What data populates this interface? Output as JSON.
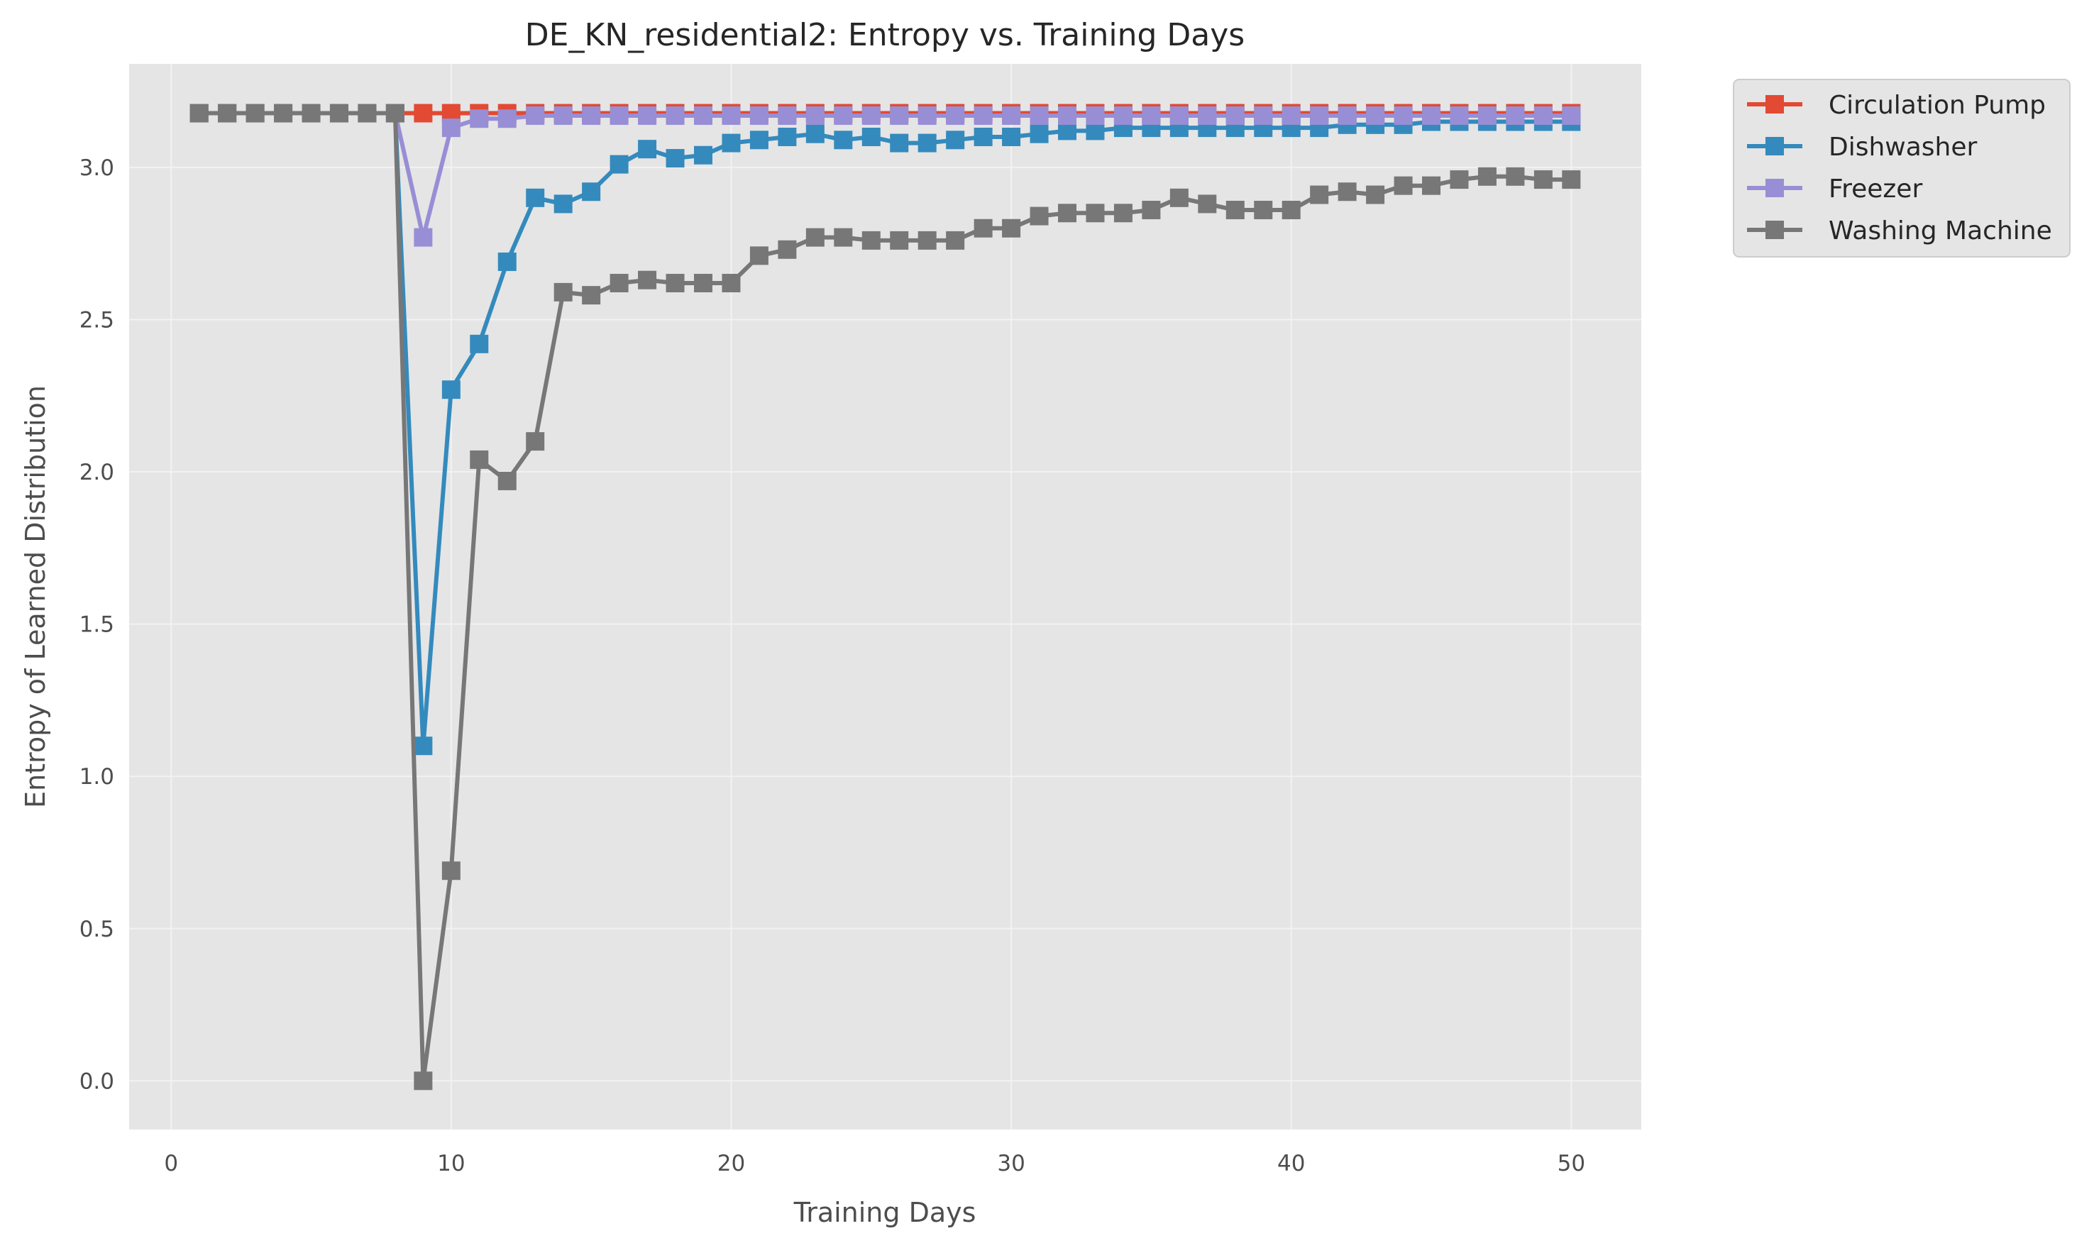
{
  "chart_data": {
    "type": "line",
    "title": "DE_KN_residential2: Entropy vs. Training Days",
    "xlabel": "Training Days",
    "ylabel": "Entropy of Learned Distribution",
    "xlim": [
      -1.5,
      52.5
    ],
    "ylim": [
      -0.16,
      3.34
    ],
    "xticks": [
      0,
      10,
      20,
      30,
      40,
      50
    ],
    "xtick_labels": [
      "0",
      "10",
      "20",
      "30",
      "40",
      "50"
    ],
    "yticks": [
      0.0,
      0.5,
      1.0,
      1.5,
      2.0,
      2.5,
      3.0
    ],
    "ytick_labels": [
      "0.0",
      "0.5",
      "1.0",
      "1.5",
      "2.0",
      "2.5",
      "3.0"
    ],
    "grid": true,
    "legend_position": "outside-top-right",
    "marker": "square",
    "x": [
      1,
      2,
      3,
      4,
      5,
      6,
      7,
      8,
      9,
      10,
      11,
      12,
      13,
      14,
      15,
      16,
      17,
      18,
      19,
      20,
      21,
      22,
      23,
      24,
      25,
      26,
      27,
      28,
      29,
      30,
      31,
      32,
      33,
      34,
      35,
      36,
      37,
      38,
      39,
      40,
      41,
      42,
      43,
      44,
      45,
      46,
      47,
      48,
      49,
      50
    ],
    "series": [
      {
        "name": "Circulation Pump",
        "color": "#E24A33",
        "values": [
          3.178,
          3.178,
          3.178,
          3.178,
          3.178,
          3.178,
          3.178,
          3.178,
          3.178,
          3.178,
          3.178,
          3.178,
          3.178,
          3.178,
          3.178,
          3.178,
          3.178,
          3.178,
          3.178,
          3.178,
          3.178,
          3.178,
          3.178,
          3.178,
          3.178,
          3.178,
          3.178,
          3.178,
          3.178,
          3.178,
          3.178,
          3.178,
          3.178,
          3.178,
          3.178,
          3.178,
          3.178,
          3.178,
          3.178,
          3.178,
          3.178,
          3.178,
          3.178,
          3.178,
          3.178,
          3.178,
          3.178,
          3.178,
          3.178,
          3.178
        ]
      },
      {
        "name": "Dishwasher",
        "color": "#348ABD",
        "values": [
          3.178,
          3.178,
          3.178,
          3.178,
          3.178,
          3.178,
          3.178,
          3.178,
          1.1,
          2.27,
          2.42,
          2.69,
          2.9,
          2.88,
          2.92,
          3.01,
          3.06,
          3.03,
          3.04,
          3.08,
          3.09,
          3.1,
          3.11,
          3.09,
          3.1,
          3.08,
          3.08,
          3.09,
          3.1,
          3.1,
          3.11,
          3.12,
          3.12,
          3.13,
          3.13,
          3.13,
          3.13,
          3.13,
          3.13,
          3.13,
          3.13,
          3.14,
          3.14,
          3.14,
          3.15,
          3.15,
          3.15,
          3.15,
          3.15,
          3.15
        ]
      },
      {
        "name": "Freezer",
        "color": "#988ED5",
        "values": [
          3.178,
          3.178,
          3.178,
          3.178,
          3.178,
          3.178,
          3.178,
          3.178,
          2.77,
          3.13,
          3.16,
          3.16,
          3.17,
          3.17,
          3.17,
          3.17,
          3.17,
          3.17,
          3.17,
          3.17,
          3.17,
          3.17,
          3.17,
          3.17,
          3.17,
          3.17,
          3.17,
          3.17,
          3.17,
          3.17,
          3.17,
          3.17,
          3.17,
          3.17,
          3.17,
          3.17,
          3.17,
          3.17,
          3.17,
          3.17,
          3.17,
          3.17,
          3.17,
          3.17,
          3.17,
          3.17,
          3.17,
          3.17,
          3.17,
          3.17
        ]
      },
      {
        "name": "Washing Machine",
        "color": "#777777",
        "values": [
          3.178,
          3.178,
          3.178,
          3.178,
          3.178,
          3.178,
          3.178,
          3.178,
          0.0,
          0.69,
          2.04,
          1.97,
          2.1,
          2.59,
          2.58,
          2.62,
          2.63,
          2.62,
          2.62,
          2.62,
          2.71,
          2.73,
          2.77,
          2.77,
          2.76,
          2.76,
          2.76,
          2.76,
          2.8,
          2.8,
          2.84,
          2.85,
          2.85,
          2.85,
          2.86,
          2.9,
          2.88,
          2.86,
          2.86,
          2.86,
          2.91,
          2.92,
          2.91,
          2.94,
          2.94,
          2.96,
          2.97,
          2.97,
          2.96,
          2.96
        ]
      }
    ]
  },
  "colors": {
    "plot_background": "#E5E5E5",
    "grid": "#F2F2F2"
  }
}
